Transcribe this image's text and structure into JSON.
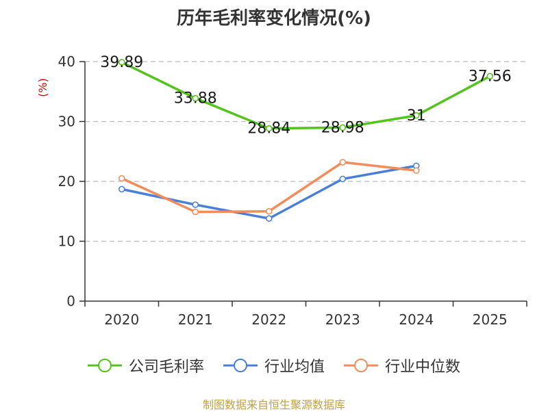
{
  "chart_data": {
    "type": "line",
    "title": "历年毛利率变化情况(%)",
    "ylabel": "(%)",
    "xlabel": "",
    "categories": [
      "2020",
      "2021",
      "2022",
      "2023",
      "2024",
      "2025"
    ],
    "ylim": [
      0,
      40
    ],
    "yticks": [
      0,
      10,
      20,
      30,
      40
    ],
    "grid": true,
    "legend_position": "bottom",
    "series": [
      {
        "name": "公司毛利率",
        "values": [
          39.89,
          33.88,
          28.84,
          28.98,
          31,
          37.56
        ],
        "labels": [
          "39.89",
          "33.88",
          "28.84",
          "28.98",
          "31",
          "37.56"
        ],
        "color": "#52c41a",
        "show_labels": true
      },
      {
        "name": "行业均值",
        "values": [
          18.7,
          16.1,
          13.8,
          20.4,
          22.6,
          null
        ],
        "color": "#4a7fd8",
        "show_labels": false
      },
      {
        "name": "行业中位数",
        "values": [
          20.5,
          14.9,
          15.0,
          23.2,
          21.8,
          null
        ],
        "color": "#f28c5a",
        "show_labels": false
      }
    ]
  },
  "footer": {
    "source": "制图数据来自恒生聚源数据库"
  },
  "colors": {
    "axis": "#333333",
    "grid": "#bbbbbb",
    "ylabel": "#cc0000"
  }
}
